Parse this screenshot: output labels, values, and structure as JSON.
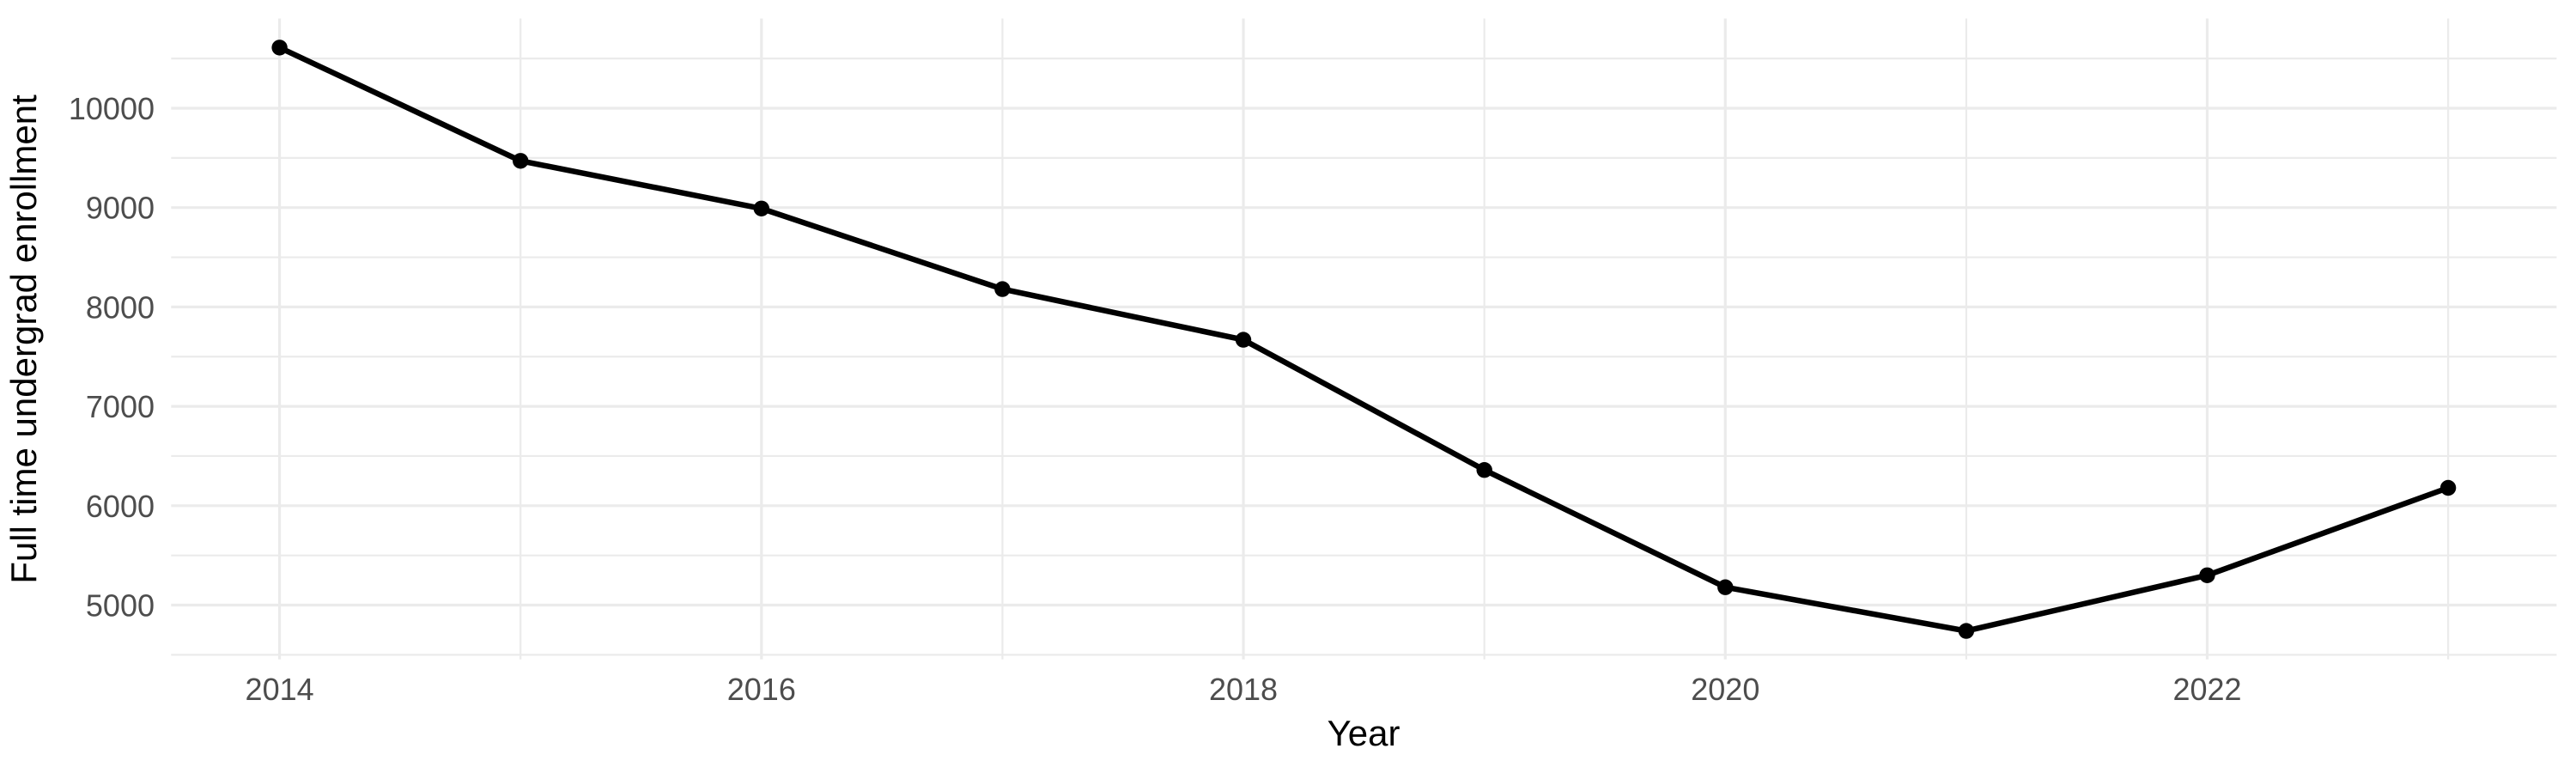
{
  "figure": {
    "background": "#FFFFFF"
  },
  "chart_data": {
    "type": "line",
    "title": "",
    "xlabel": "Year",
    "ylabel": "Full time undergrad enrollment",
    "x": [
      2014,
      2015,
      2016,
      2017,
      2018,
      2019,
      2020,
      2021,
      2022,
      2023
    ],
    "values": [
      10610,
      9470,
      8990,
      8180,
      7670,
      6360,
      5180,
      4740,
      5300,
      6180
    ],
    "series_name": "Full time undergrad enrollment",
    "x_tick_positions": [
      2014,
      2016,
      2018,
      2020,
      2022
    ],
    "x_tick_labels": [
      "2014",
      "2016",
      "2018",
      "2020",
      "2022"
    ],
    "x_minor_positions": [
      2015,
      2017,
      2019,
      2021,
      2023
    ],
    "y_tick_positions": [
      5000,
      6000,
      7000,
      8000,
      9000,
      10000
    ],
    "y_tick_labels": [
      "5000",
      "6000",
      "7000",
      "8000",
      "9000",
      "10000"
    ],
    "y_minor_positions": [
      4500,
      5500,
      6500,
      7500,
      8500,
      9500,
      10500
    ],
    "xlim": [
      2013.55,
      2023.45
    ],
    "ylim": [
      4454,
      10903
    ],
    "grid": true,
    "legend_position": "none",
    "marker": "filled-circle",
    "colors": {
      "line": "#000000",
      "point": "#000000",
      "grid": "#EBEBEB",
      "tick_label": "#4D4D4D",
      "axis_title": "#000000",
      "background": "#FFFFFF"
    }
  }
}
